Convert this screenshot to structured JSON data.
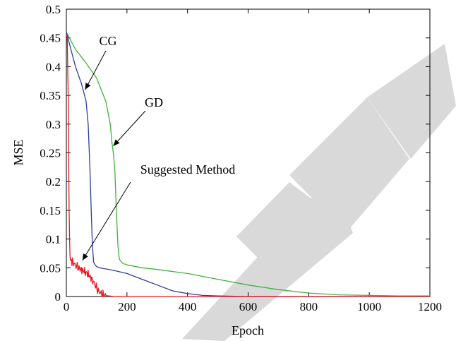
{
  "chart_data": {
    "type": "line",
    "title": "",
    "xlabel": "Epoch",
    "ylabel": "MSE",
    "xlim": [
      0,
      1200
    ],
    "ylim": [
      0,
      0.5
    ],
    "xticks": [
      "0",
      "200",
      "400",
      "600",
      "800",
      "1000",
      "1200"
    ],
    "yticks": [
      "0",
      "0.05",
      "0.1",
      "0.15",
      "0.2",
      "0.25",
      "0.3",
      "0.35",
      "0.4",
      "0.45",
      "0.5"
    ],
    "grid": false,
    "legend": "none",
    "series": [
      {
        "name": "Suggested Method",
        "color": "#e8141b",
        "x": [
          0,
          3,
          6,
          9,
          12,
          15,
          20,
          30,
          40,
          55,
          70,
          85,
          95,
          105,
          115,
          125,
          140,
          160,
          200,
          300,
          600,
          1200
        ],
        "y": [
          0.455,
          0.45,
          0.35,
          0.15,
          0.07,
          0.062,
          0.06,
          0.055,
          0.05,
          0.045,
          0.04,
          0.03,
          0.02,
          0.01,
          0.005,
          0.002,
          0.001,
          0.0,
          0.0,
          0.0,
          0.0,
          0.0
        ]
      },
      {
        "name": "CG",
        "color": "#2c3d9e",
        "x": [
          0,
          10,
          30,
          50,
          65,
          72,
          78,
          82,
          86,
          90,
          95,
          100,
          110,
          130,
          160,
          200,
          250,
          300,
          350,
          400,
          450,
          500,
          600,
          800,
          1200
        ],
        "y": [
          0.46,
          0.44,
          0.4,
          0.37,
          0.34,
          0.3,
          0.22,
          0.15,
          0.09,
          0.06,
          0.055,
          0.052,
          0.05,
          0.048,
          0.045,
          0.04,
          0.03,
          0.02,
          0.01,
          0.005,
          0.002,
          0.001,
          0.0,
          0.0,
          0.0
        ]
      },
      {
        "name": "GD",
        "color": "#3fb23c",
        "x": [
          0,
          10,
          30,
          60,
          100,
          130,
          145,
          150,
          155,
          160,
          165,
          170,
          175,
          185,
          200,
          250,
          300,
          400,
          500,
          600,
          700,
          800,
          900,
          1000,
          1100,
          1200
        ],
        "y": [
          0.46,
          0.45,
          0.43,
          0.41,
          0.38,
          0.34,
          0.3,
          0.27,
          0.25,
          0.22,
          0.15,
          0.09,
          0.065,
          0.058,
          0.055,
          0.05,
          0.047,
          0.04,
          0.03,
          0.02,
          0.012,
          0.006,
          0.003,
          0.002,
          0.001,
          0.001
        ]
      }
    ],
    "annotations": [
      {
        "text": "CG",
        "target_x": 62,
        "target_y": 0.36
      },
      {
        "text": "GD",
        "target_x": 155,
        "target_y": 0.262
      },
      {
        "text": "Suggested Method",
        "target_x": 53,
        "target_y": 0.063
      }
    ]
  }
}
